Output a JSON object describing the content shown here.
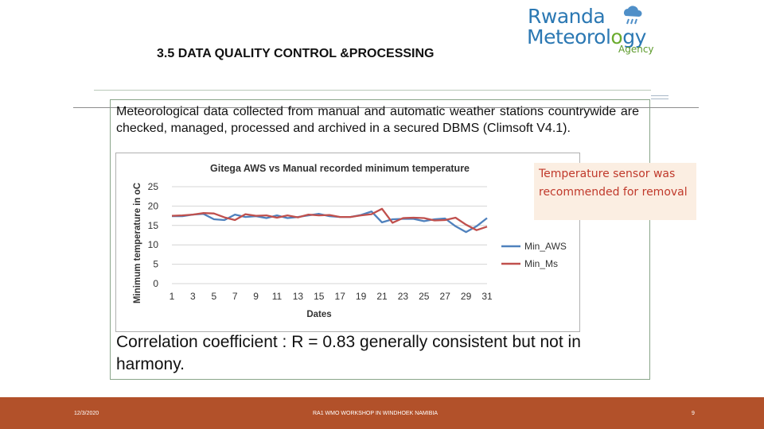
{
  "slide": {
    "title": "3.5 DATA QUALITY CONTROL &PROCESSING",
    "intro": "Meteorological data collected from manual and automatic weather stations countrywide are checked, managed, processed and archived in a secured DBMS (Climsoft V4.1).",
    "callout": "Temperature sensor was recommended for removal",
    "conclusion": "Correlation coefficient : R = 0.83 generally consistent but not in harmony."
  },
  "logo": {
    "line1": "Rwanda",
    "line2_a": "Meteorol",
    "line2_b": "o",
    "line2_c": "gy",
    "line3": "Agency"
  },
  "footer": {
    "date": "12/3/2020",
    "event": "RA1 WMO WORKSHOP IN WINDHOEK NAMIBIA",
    "page": "9"
  },
  "colors": {
    "min_aws": "#4f81bd",
    "min_ms": "#c0504d",
    "footer": "#b2512a",
    "callout_bg": "#fbeee2",
    "callout_text": "#c0392b"
  },
  "chart_data": {
    "type": "line",
    "title": "Gitega AWS vs Manual recorded minimum temperature",
    "xlabel": "Dates",
    "ylabel": "Minimum temperature in oC",
    "x": [
      1,
      2,
      3,
      4,
      5,
      6,
      7,
      8,
      9,
      10,
      11,
      12,
      13,
      14,
      15,
      16,
      17,
      18,
      19,
      20,
      21,
      22,
      23,
      24,
      25,
      26,
      27,
      28,
      29,
      30,
      31
    ],
    "x_tick_labels": [
      "1",
      "3",
      "5",
      "7",
      "9",
      "11",
      "13",
      "15",
      "17",
      "19",
      "21",
      "23",
      "25",
      "27",
      "29",
      "31"
    ],
    "ylim": [
      0,
      25
    ],
    "y_ticks": [
      0,
      5,
      10,
      15,
      20,
      25
    ],
    "grid": true,
    "legend_position": "right",
    "series": [
      {
        "name": "Min_AWS",
        "values": [
          17.4,
          17.4,
          17.8,
          18.0,
          16.6,
          16.4,
          17.8,
          17.2,
          17.4,
          16.9,
          17.6,
          16.9,
          17.2,
          17.6,
          18.0,
          17.4,
          17.2,
          17.2,
          17.7,
          18.6,
          15.8,
          16.6,
          16.7,
          16.7,
          16.1,
          16.6,
          16.8,
          14.8,
          13.3,
          14.8,
          16.9
        ]
      },
      {
        "name": "Min_Ms",
        "values": [
          17.5,
          17.6,
          17.8,
          18.2,
          18.1,
          17.1,
          16.4,
          17.9,
          17.5,
          17.6,
          17.0,
          17.6,
          17.1,
          17.8,
          17.6,
          17.7,
          17.2,
          17.2,
          17.6,
          17.9,
          19.3,
          15.7,
          16.9,
          17.0,
          16.9,
          16.3,
          16.4,
          17.0,
          15.2,
          13.8,
          14.7
        ]
      }
    ]
  }
}
